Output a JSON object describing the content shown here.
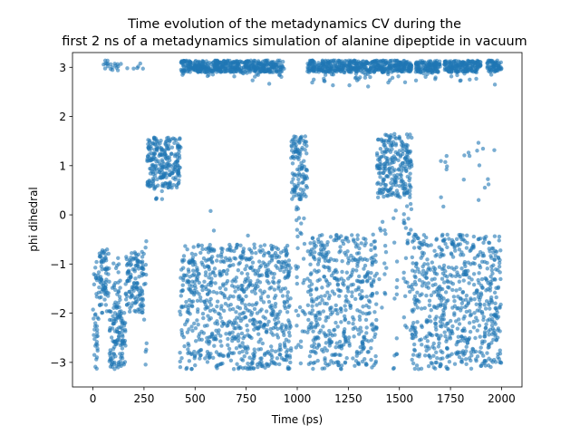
{
  "chart_data": {
    "type": "scatter",
    "title": [
      "Time evolution of the metadynamics CV during the",
      "first 2 ns of a metadynamics simulation of alanine dipeptide in vacuum"
    ],
    "xlabel": "Time (ps)",
    "ylabel": "phi dihedral",
    "xlim": [
      -100,
      2100
    ],
    "ylim": [
      -3.5,
      3.3
    ],
    "xticks": [
      0,
      250,
      500,
      750,
      1000,
      1250,
      1500,
      1750,
      2000
    ],
    "yticks": [
      -3,
      -2,
      -1,
      0,
      1,
      2,
      3
    ],
    "grid": false,
    "legend": "none",
    "series_color": "#1f77b4",
    "marker_alpha": 0.6,
    "segments": [
      {
        "t": [
          0,
          28
        ],
        "lo": -3.14,
        "hi": -0.95,
        "mode": "dense"
      },
      {
        "t": [
          28,
          80
        ],
        "lo": -2.0,
        "hi": -0.7,
        "mode": "dense"
      },
      {
        "t": [
          80,
          160
        ],
        "lo": -3.14,
        "hi": -1.95,
        "mode": "dense"
      },
      {
        "t": [
          95,
          135
        ],
        "lo": -1.9,
        "hi": -0.8,
        "mode": "mixed"
      },
      {
        "t": [
          160,
          250
        ],
        "lo": -2.0,
        "hi": -0.75,
        "mode": "dense"
      },
      {
        "t": [
          250,
          265
        ],
        "lo": -3.14,
        "hi": -0.2,
        "mode": "mixed"
      },
      {
        "t": [
          265,
          430
        ],
        "lo": 0.55,
        "hi": 1.6,
        "mode": "dense"
      },
      {
        "t": [
          300,
          360
        ],
        "lo": 0.3,
        "hi": 1.6,
        "mode": "sparse"
      },
      {
        "t": [
          425,
          970
        ],
        "lo": -3.14,
        "hi": -0.6,
        "mode": "dense"
      },
      {
        "t": [
          560,
          600
        ],
        "lo": -3.14,
        "hi": 0.45,
        "mode": "sparse"
      },
      {
        "t": [
          730,
          790
        ],
        "lo": -3.14,
        "hi": 0.0,
        "mode": "sparse"
      },
      {
        "t": [
          970,
          1050
        ],
        "lo": 0.3,
        "hi": 1.6,
        "mode": "dense"
      },
      {
        "t": [
          990,
          1040
        ],
        "lo": -3.14,
        "hi": 0.3,
        "mode": "mixed"
      },
      {
        "t": [
          1050,
          1320
        ],
        "lo": -3.14,
        "hi": -0.4,
        "mode": "dense"
      },
      {
        "t": [
          1320,
          1390
        ],
        "lo": -3.14,
        "hi": -0.4,
        "mode": "dense"
      },
      {
        "t": [
          1390,
          1560
        ],
        "lo": 0.35,
        "hi": 1.65,
        "mode": "dense"
      },
      {
        "t": [
          1400,
          1440
        ],
        "lo": -2.0,
        "hi": 0.4,
        "mode": "sparse"
      },
      {
        "t": [
          1470,
          1490
        ],
        "lo": -3.14,
        "hi": 0.4,
        "mode": "mixed"
      },
      {
        "t": [
          1520,
          1560
        ],
        "lo": -2.5,
        "hi": 0.4,
        "mode": "mixed"
      },
      {
        "t": [
          1560,
          2000
        ],
        "lo": -3.14,
        "hi": -0.4,
        "mode": "dense"
      },
      {
        "t": [
          1700,
          1740
        ],
        "lo": -2.5,
        "hi": 1.3,
        "mode": "sparse"
      },
      {
        "t": [
          1810,
          1850
        ],
        "lo": -3.14,
        "hi": 1.5,
        "mode": "sparse"
      },
      {
        "t": [
          1880,
          1920
        ],
        "lo": -3.14,
        "hi": 1.6,
        "mode": "sparse"
      },
      {
        "t": [
          1930,
          1970
        ],
        "lo": -3.14,
        "hi": 1.5,
        "mode": "sparse"
      }
    ],
    "top_band": {
      "lo": 2.9,
      "hi": 3.14,
      "ranges": [
        [
          40,
          250
        ],
        [
          420,
          940
        ],
        [
          1050,
          1560
        ],
        [
          1580,
          1900
        ],
        [
          1930,
          2000
        ]
      ],
      "dense_ranges": [
        [
          430,
          930
        ],
        [
          1050,
          1560
        ],
        [
          1580,
          1700
        ],
        [
          1720,
          1900
        ],
        [
          1930,
          2000
        ]
      ]
    }
  }
}
